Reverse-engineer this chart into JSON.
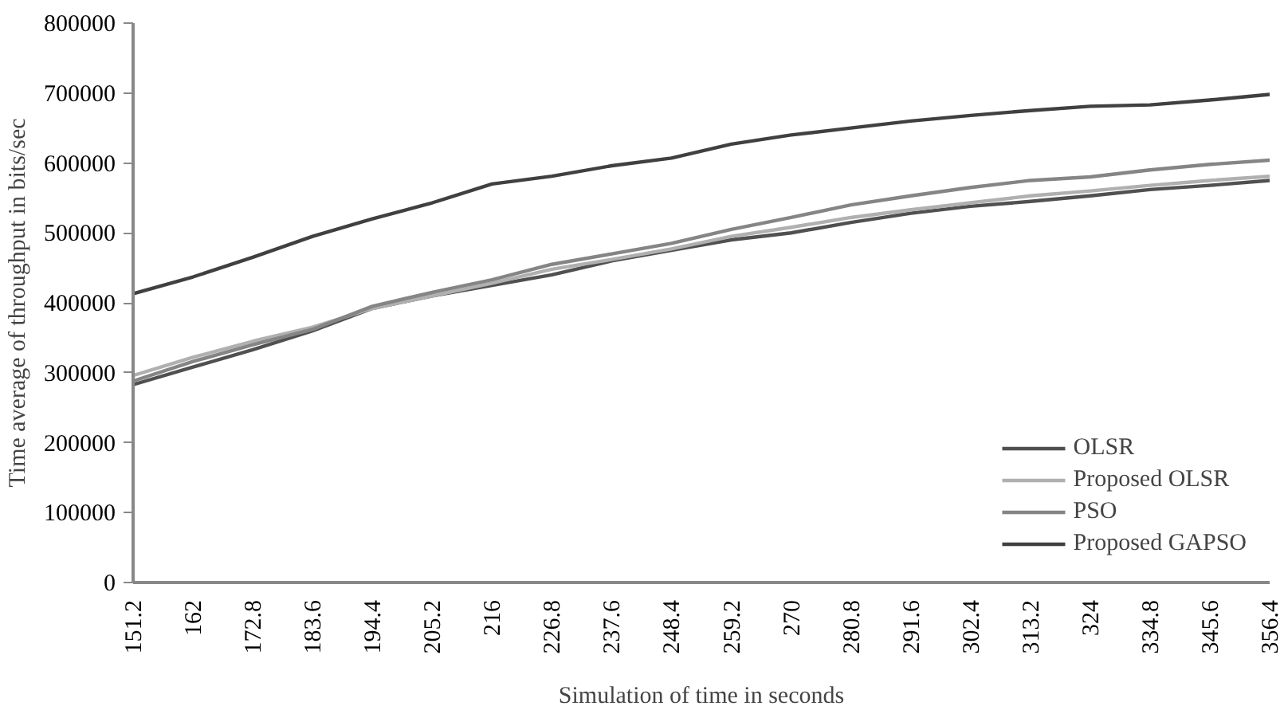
{
  "chart_data": {
    "type": "line",
    "xlabel": "Simulation of time in seconds",
    "ylabel": "Time average of throughput in bits/sec",
    "x": [
      151.2,
      162,
      172.8,
      183.6,
      194.4,
      205.2,
      216,
      226.8,
      237.6,
      248.4,
      259.2,
      270,
      280.8,
      291.6,
      302.4,
      313.2,
      324,
      334.8,
      345.6,
      356.4
    ],
    "series": [
      {
        "name": "OLSR",
        "color": "#505050",
        "values": [
          283000,
          308000,
          333000,
          360000,
          392000,
          410000,
          425000,
          440000,
          460000,
          475000,
          490000,
          500000,
          515000,
          528000,
          538000,
          545000,
          553000,
          562000,
          568000,
          575000
        ]
      },
      {
        "name": "Proposed OLSR",
        "color": "#b0b0b0",
        "values": [
          296000,
          322000,
          345000,
          365000,
          392000,
          410000,
          428000,
          448000,
          462000,
          477000,
          495000,
          508000,
          522000,
          533000,
          543000,
          553000,
          560000,
          568000,
          575000,
          581000
        ]
      },
      {
        "name": "PSO",
        "color": "#858585",
        "values": [
          288000,
          316000,
          340000,
          362000,
          395000,
          415000,
          433000,
          455000,
          470000,
          485000,
          505000,
          522000,
          540000,
          553000,
          565000,
          575000,
          580000,
          590000,
          598000,
          604000
        ]
      },
      {
        "name": "Proposed GAPSO",
        "color": "#404040",
        "values": [
          413000,
          437000,
          465000,
          495000,
          520000,
          543000,
          570000,
          581000,
          596000,
          607000,
          627000,
          640000,
          650000,
          660000,
          668000,
          675000,
          681000,
          683000,
          690000,
          698000
        ]
      }
    ],
    "xlim": [
      151.2,
      356.4
    ],
    "xticks": [
      151.2,
      162,
      172.8,
      183.6,
      194.4,
      205.2,
      216,
      226.8,
      237.6,
      248.4,
      259.2,
      270,
      280.8,
      291.6,
      302.4,
      313.2,
      324,
      334.8,
      345.6,
      356.4
    ],
    "ylim": [
      0,
      800000
    ],
    "yticks": [
      0,
      100000,
      200000,
      300000,
      400000,
      500000,
      600000,
      700000,
      800000
    ],
    "grid": false,
    "legend": "bottom right",
    "marker": "none",
    "line_style": "solid"
  }
}
